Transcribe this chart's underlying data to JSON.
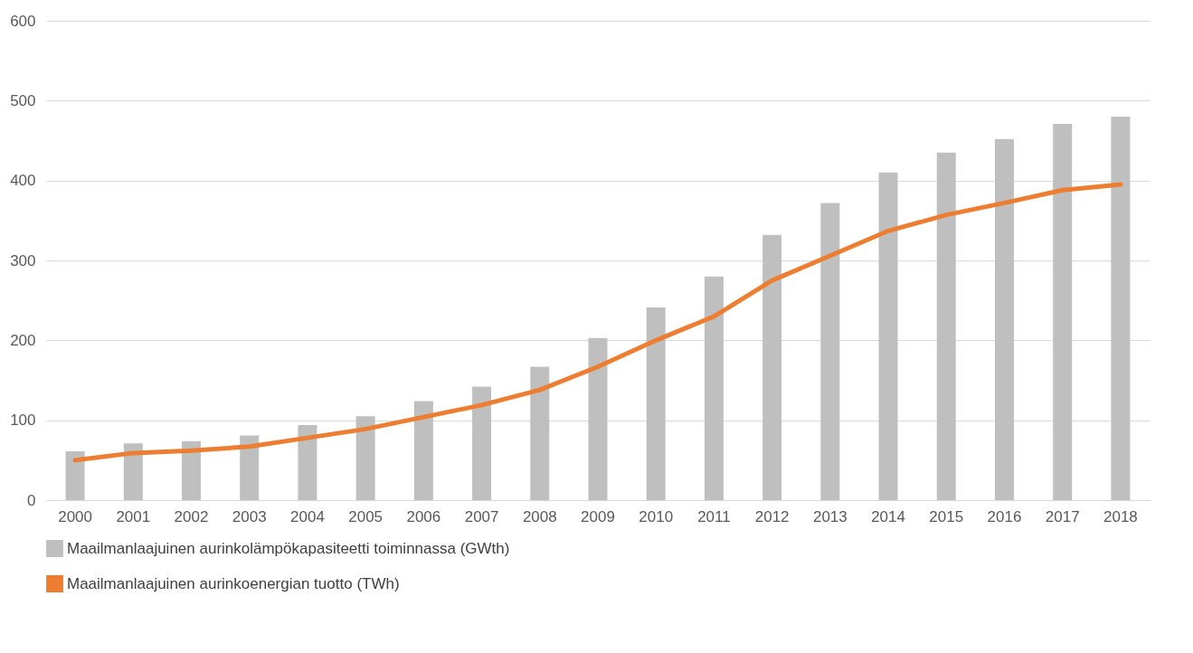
{
  "chart_data": {
    "type": "bar",
    "categories": [
      "2000",
      "2001",
      "2002",
      "2003",
      "2004",
      "2005",
      "2006",
      "2007",
      "2008",
      "2009",
      "2010",
      "2011",
      "2012",
      "2013",
      "2014",
      "2015",
      "2016",
      "2017",
      "2018"
    ],
    "series": [
      {
        "name": "Maailmanlaajuinen aurinkolämpökapasiteetti toiminnassa (GWth)",
        "color": "#bfbfbf",
        "values": [
          61,
          71,
          74,
          81,
          94,
          105,
          124,
          142,
          167,
          203,
          241,
          280,
          332,
          372,
          410,
          435,
          452,
          471,
          480
        ]
      },
      {
        "name": "Maailmanlaajuinen aurinkoenergian tuotto (TWh)",
        "type": "line",
        "color": "#ed7d31",
        "values": [
          50,
          59,
          62,
          67,
          78,
          89,
          104,
          119,
          138,
          167,
          200,
          230,
          275,
          306,
          337,
          357,
          372,
          388,
          395
        ]
      }
    ],
    "ylim": [
      0,
      600
    ],
    "yticks": [
      0,
      100,
      200,
      300,
      400,
      500,
      600
    ],
    "grid": "y",
    "legend": "bottom",
    "marker": "none"
  }
}
